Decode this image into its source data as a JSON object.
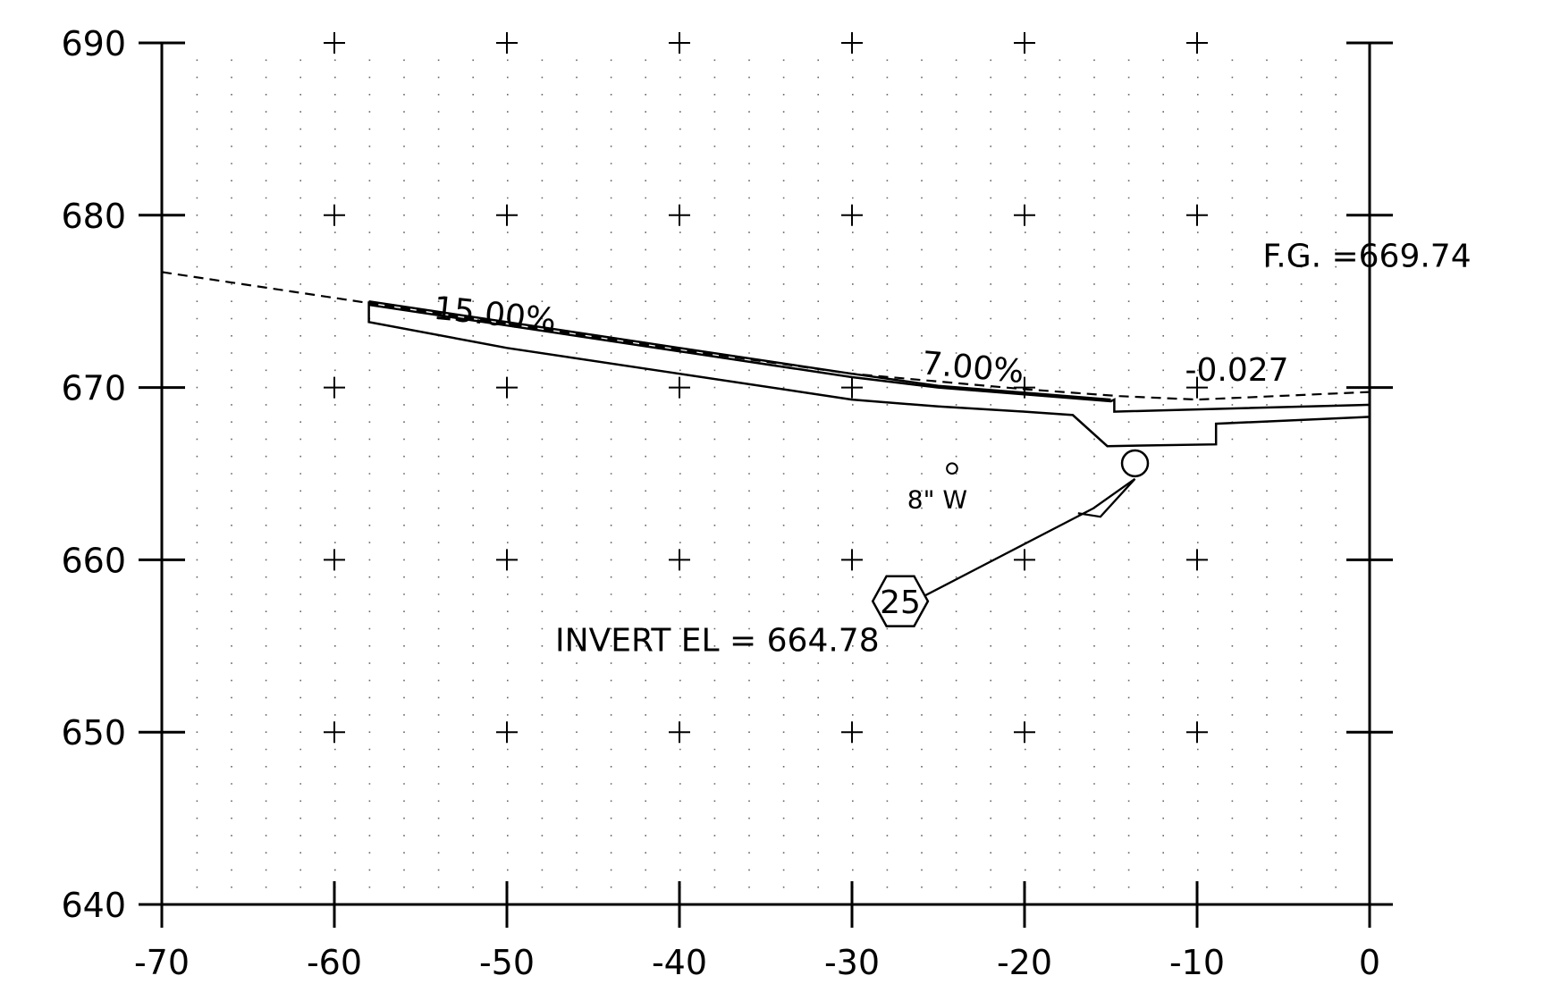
{
  "chart_data": {
    "type": "line",
    "title": "",
    "xlabel": "",
    "ylabel": "",
    "xlim": [
      -70,
      0
    ],
    "ylim": [
      640,
      690
    ],
    "xticks": [
      -70,
      -60,
      -50,
      -40,
      -30,
      -20,
      -10,
      0
    ],
    "yticks": [
      640,
      650,
      660,
      670,
      680,
      690
    ],
    "x_tick_labels": [
      "-70",
      "-60",
      "-50",
      "-40",
      "-30",
      "-20",
      "-10",
      "0"
    ],
    "y_tick_labels": [
      "640",
      "650",
      "660",
      "670",
      "680",
      "690"
    ],
    "grid": "dotted",
    "grid_crosses": true,
    "series": [
      {
        "style": "dashed",
        "x": [
          -70,
          -60,
          -50,
          -40,
          -30,
          -20,
          -14.5,
          -10,
          0
        ],
        "y": [
          676.7,
          675.2,
          673.7,
          672.2,
          670.8,
          669.9,
          669.5,
          669.3,
          669.74
        ]
      }
    ],
    "pavement_top": {
      "x": [
        -58,
        -50,
        -40,
        -30,
        -25,
        -20,
        -15
      ],
      "y": [
        675.0,
        673.8,
        672.3,
        670.8,
        670.1,
        669.7,
        669.3
      ]
    },
    "pavement_profile": {
      "x": [
        -58,
        -58,
        -50,
        -40,
        -30,
        -25,
        -20,
        -17.2,
        -15.2,
        -8.9,
        -8.9,
        0,
        0,
        -14.8,
        -14.8,
        -15,
        -20,
        -25,
        -30,
        -40,
        -50,
        -58
      ],
      "y": [
        675.0,
        673.8,
        672.3,
        670.8,
        669.3,
        668.9,
        668.6,
        668.4,
        666.6,
        666.7,
        667.9,
        668.3,
        669.0,
        668.6,
        669.3,
        669.2,
        669.6,
        670.0,
        670.6,
        672.1,
        673.6,
        674.8
      ]
    },
    "pipe_circle": {
      "x": -13.6,
      "y": 665.6,
      "r": 0.75
    },
    "small_circle": {
      "x": -24.2,
      "y": 665.3,
      "r": 0.3
    },
    "leader_line": {
      "x": [
        -26.4,
        -16.0,
        -13.6,
        -15.6,
        -16.9
      ],
      "y": [
        657.6,
        663.0,
        664.7,
        662.5,
        662.7
      ]
    },
    "hexagon": {
      "x": -27.2,
      "y": 657.6,
      "rx": 1.6,
      "ry": 1.45
    },
    "annotations": [
      {
        "text": "15.00%",
        "x": -54.3,
        "y": 674.0,
        "angle": 6
      },
      {
        "text": "7.00%",
        "x": -26.0,
        "y": 670.8,
        "angle": 5
      },
      {
        "text": "-0.027",
        "x": -10.7,
        "y": 670.4,
        "angle": 0
      },
      {
        "text": "F.G.  =669.74",
        "x": -6.2,
        "y": 677.0,
        "angle": 0
      },
      {
        "text": "8\"  W",
        "x": -26.8,
        "y": 663.0,
        "angle": 0
      },
      {
        "text": "INVERT EL = 664.78",
        "x": -47.2,
        "y": 654.7,
        "angle": 0
      },
      {
        "text": "25",
        "x": -27.2,
        "y": 656.9,
        "angle": 0
      }
    ]
  }
}
